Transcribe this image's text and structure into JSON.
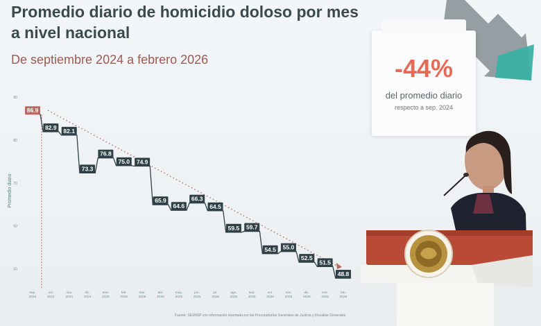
{
  "header": {
    "title": "Promedio diario de homicidio doloso por mes a nivel nacional",
    "subtitle": "De septiembre 2024 a febrero 2026"
  },
  "stat_card": {
    "value": "-44%",
    "description": "del promedio diario",
    "detail": "respecto a sep. 2024"
  },
  "source_note": "Fuente: SESNSP con información reportada por las Procuradurías Generales de Justicia y Fiscalías Generales.",
  "colors": {
    "title": "#3a4a4e",
    "subtitle": "#9c5a52",
    "accent": "#e46b55",
    "label_dark": "#2f4147",
    "label_first": "#b9695f",
    "arrow_gray": "#8a9599",
    "arrow_teal": "#3bb0a4"
  },
  "icons": [
    "downward-trend-arrow-icon",
    "national-seal-icon",
    "microphone-icon"
  ],
  "chart_data": {
    "type": "line",
    "title": "Promedio diario de homicidio doloso por mes a nivel nacional",
    "ylabel": "Promedio diario",
    "ylim": [
      48,
      90
    ],
    "y_ticks": [
      "90",
      "80",
      "70",
      "60",
      "50"
    ],
    "categories": [
      "sep. 2024",
      "oct. 2024",
      "nov. 2024",
      "dic. 2024",
      "ene. 2025",
      "feb. 2025",
      "mar. 2025",
      "abr. 2025",
      "may. 2025",
      "jun. 2025",
      "jul. 2025",
      "ago. 2025",
      "sep. 2025",
      "oct. 2025",
      "nov. 2025",
      "dic. 2025",
      "ene. 2026",
      "feb. 2026"
    ],
    "series": [
      {
        "values": [
          86.9,
          82.9,
          82.1,
          73.3,
          76.8,
          75.0,
          74.9,
          65.9,
          64.6,
          66.3,
          64.5,
          59.5,
          59.7,
          54.5,
          55.0,
          52.5,
          51.5,
          48.8
        ]
      }
    ],
    "labels": [
      "86.9",
      "82.9",
      "82.1",
      "73.3",
      "76.8",
      "75.0",
      "74.9",
      "65.9",
      "64.6",
      "66.3",
      "64.5",
      "59.5",
      "59.7",
      "54.5",
      "55.0",
      "52.5",
      "51.5",
      "48.8"
    ],
    "trend": "dotted line from first to last value",
    "grid": false,
    "legend": "none"
  }
}
